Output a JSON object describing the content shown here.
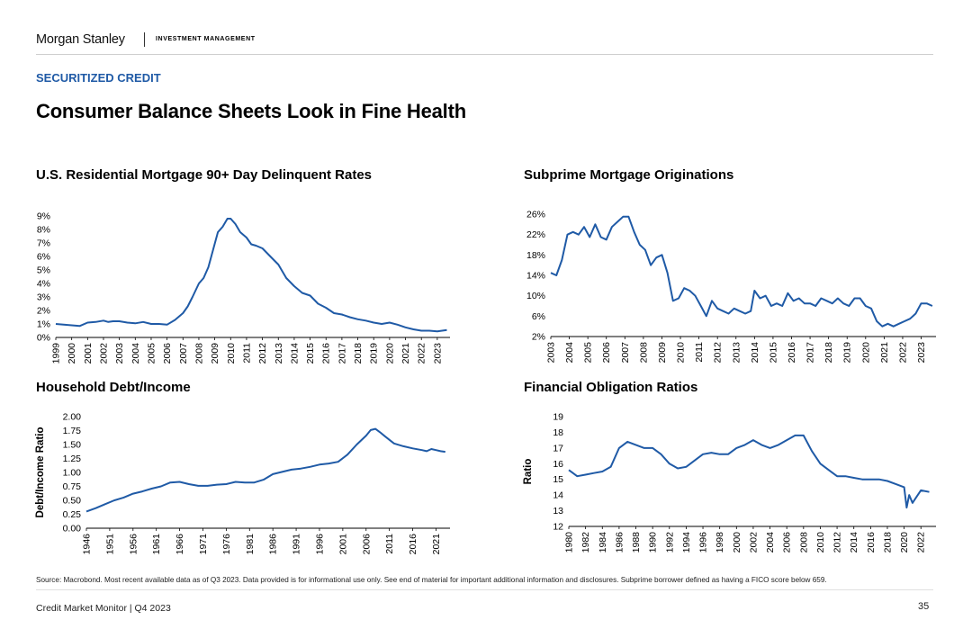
{
  "header": {
    "brand": "Morgan Stanley",
    "division": "INVESTMENT MANAGEMENT"
  },
  "section_label": "SECURITIZED CREDIT",
  "page_title": "Consumer Balance Sheets Look in Fine Health",
  "colors": {
    "line": "#1f5aa6",
    "section": "#1f5aa6",
    "axis": "#000000"
  },
  "chart_data": [
    {
      "id": "delinquency",
      "type": "line",
      "title": "U.S. Residential Mortgage 90+ Day Delinquent Rates",
      "ylabel": "",
      "ylim": [
        0,
        9
      ],
      "yticks": [
        0,
        1,
        2,
        3,
        4,
        5,
        6,
        7,
        8,
        9
      ],
      "ytick_labels": [
        "0%",
        "1%",
        "2%",
        "3%",
        "4%",
        "5%",
        "6%",
        "7%",
        "8%",
        "9%"
      ],
      "xlim": [
        1999,
        2023.8
      ],
      "xticks": [
        1999,
        2000,
        2001,
        2002,
        2003,
        2004,
        2005,
        2006,
        2007,
        2008,
        2009,
        2010,
        2011,
        2012,
        2013,
        2014,
        2015,
        2016,
        2017,
        2018,
        2019,
        2020,
        2021,
        2022,
        2023
      ],
      "xtick_labels": [
        "1999",
        "2000",
        "2001",
        "2002",
        "2003",
        "2004",
        "2005",
        "2006",
        "2007",
        "2008",
        "2009",
        "2010",
        "2011",
        "2012",
        "2013",
        "2014",
        "2015",
        "2016",
        "2017",
        "2018",
        "2019",
        "2020",
        "2021",
        "2022",
        "2023"
      ],
      "series": [
        {
          "x": [
            1999,
            1999.5,
            2000,
            2000.5,
            2001,
            2001.5,
            2002,
            2002.3,
            2002.6,
            2003,
            2003.5,
            2004,
            2004.5,
            2005,
            2005.5,
            2006,
            2006.5,
            2007,
            2007.3,
            2007.6,
            2008,
            2008.3,
            2008.6,
            2008.9,
            2009.2,
            2009.5,
            2009.8,
            2010.0,
            2010.3,
            2010.6,
            2011,
            2011.3,
            2011.6,
            2012,
            2012.5,
            2013,
            2013.5,
            2014,
            2014.5,
            2015,
            2015.5,
            2016,
            2016.5,
            2017,
            2017.5,
            2018,
            2018.5,
            2019,
            2019.5,
            2020,
            2020.5,
            2021,
            2021.5,
            2022,
            2022.5,
            2023,
            2023.6
          ],
          "y": [
            1.0,
            0.95,
            0.9,
            0.85,
            1.1,
            1.15,
            1.25,
            1.15,
            1.2,
            1.2,
            1.1,
            1.05,
            1.15,
            1.0,
            1.0,
            0.95,
            1.3,
            1.8,
            2.3,
            3.0,
            4.0,
            4.4,
            5.2,
            6.5,
            7.8,
            8.2,
            8.8,
            8.8,
            8.4,
            7.8,
            7.4,
            6.9,
            6.8,
            6.6,
            6.0,
            5.4,
            4.4,
            3.8,
            3.3,
            3.1,
            2.5,
            2.2,
            1.8,
            1.7,
            1.5,
            1.35,
            1.25,
            1.1,
            1.0,
            1.1,
            0.95,
            0.75,
            0.6,
            0.5,
            0.5,
            0.45,
            0.55
          ]
        }
      ]
    },
    {
      "id": "subprime",
      "type": "line",
      "title": "Subprime Mortgage Originations",
      "ylabel": "",
      "ylim": [
        2,
        26
      ],
      "yticks": [
        2,
        6,
        10,
        14,
        18,
        22,
        26
      ],
      "ytick_labels": [
        "2%",
        "6%",
        "10%",
        "14%",
        "18%",
        "22%",
        "26%"
      ],
      "xlim": [
        2003,
        2023.8
      ],
      "xticks": [
        2003,
        2004,
        2005,
        2006,
        2007,
        2008,
        2009,
        2010,
        2011,
        2012,
        2013,
        2014,
        2015,
        2016,
        2017,
        2018,
        2019,
        2020,
        2021,
        2022,
        2023
      ],
      "xtick_labels": [
        "2003",
        "2004",
        "2005",
        "2006",
        "2007",
        "2008",
        "2009",
        "2010",
        "2011",
        "2012",
        "2013",
        "2014",
        "2015",
        "2016",
        "2017",
        "2018",
        "2019",
        "2020",
        "2021",
        "2022",
        "2023"
      ],
      "series": [
        {
          "x": [
            2003,
            2003.3,
            2003.6,
            2003.9,
            2004.2,
            2004.5,
            2004.8,
            2005.1,
            2005.4,
            2005.7,
            2006.0,
            2006.3,
            2006.6,
            2006.9,
            2007.2,
            2007.5,
            2007.8,
            2008.1,
            2008.4,
            2008.7,
            2009.0,
            2009.3,
            2009.6,
            2009.9,
            2010.2,
            2010.5,
            2010.8,
            2011.1,
            2011.4,
            2011.7,
            2012.0,
            2012.3,
            2012.6,
            2012.9,
            2013.2,
            2013.5,
            2013.8,
            2014.0,
            2014.3,
            2014.6,
            2014.9,
            2015.2,
            2015.5,
            2015.8,
            2016.1,
            2016.4,
            2016.7,
            2017.0,
            2017.3,
            2017.6,
            2017.9,
            2018.2,
            2018.5,
            2018.8,
            2019.1,
            2019.4,
            2019.7,
            2020.0,
            2020.3,
            2020.6,
            2020.9,
            2021.2,
            2021.5,
            2021.8,
            2022.1,
            2022.4,
            2022.7,
            2023.0,
            2023.3,
            2023.6
          ],
          "y": [
            14.5,
            14.0,
            17.0,
            22.0,
            22.5,
            22.0,
            23.5,
            21.5,
            24.0,
            21.5,
            21.0,
            23.5,
            24.5,
            25.5,
            25.5,
            22.5,
            20.0,
            19.0,
            16.0,
            17.5,
            18.0,
            14.5,
            9.0,
            9.5,
            11.5,
            11.0,
            10.0,
            8.0,
            6.0,
            9.0,
            7.5,
            7.0,
            6.5,
            7.5,
            7.0,
            6.5,
            7.0,
            11.0,
            9.5,
            10.0,
            8.0,
            8.5,
            8.0,
            10.5,
            9.0,
            9.5,
            8.5,
            8.5,
            8.0,
            9.5,
            9.0,
            8.5,
            9.5,
            8.5,
            8.0,
            9.5,
            9.5,
            8.0,
            7.5,
            5.0,
            4.0,
            4.5,
            4.0,
            4.5,
            5.0,
            5.5,
            6.5,
            8.5,
            8.5,
            8.0
          ]
        }
      ]
    },
    {
      "id": "household",
      "type": "line",
      "title": "Household Debt/Income",
      "ylabel": "Debt/Income Ratio",
      "ylim": [
        0,
        2
      ],
      "yticks": [
        0,
        0.25,
        0.5,
        0.75,
        1,
        1.25,
        1.5,
        1.75,
        2
      ],
      "ytick_labels": [
        "0.00",
        "0.25",
        "0.50",
        "0.75",
        "1.00",
        "1.25",
        "1.50",
        "1.75",
        "2.00"
      ],
      "xlim": [
        1946,
        2024
      ],
      "xticks": [
        1946,
        1951,
        1956,
        1961,
        1966,
        1971,
        1976,
        1981,
        1986,
        1991,
        1996,
        2001,
        2006,
        2011,
        2016,
        2021
      ],
      "xtick_labels": [
        "1946",
        "1951",
        "1956",
        "1961",
        "1966",
        "1971",
        "1976",
        "1981",
        "1986",
        "1991",
        "1996",
        "2001",
        "2006",
        "2011",
        "2016",
        "2021"
      ],
      "series": [
        {
          "x": [
            1946,
            1948,
            1950,
            1952,
            1954,
            1956,
            1958,
            1960,
            1962,
            1964,
            1966,
            1968,
            1970,
            1972,
            1974,
            1976,
            1978,
            1980,
            1982,
            1984,
            1986,
            1988,
            1990,
            1992,
            1994,
            1996,
            1998,
            2000,
            2002,
            2004,
            2006,
            2007,
            2008,
            2009,
            2010,
            2012,
            2014,
            2016,
            2018,
            2019,
            2020,
            2021,
            2022,
            2023
          ],
          "y": [
            0.3,
            0.36,
            0.43,
            0.5,
            0.55,
            0.62,
            0.66,
            0.71,
            0.75,
            0.82,
            0.83,
            0.79,
            0.76,
            0.76,
            0.78,
            0.79,
            0.83,
            0.82,
            0.82,
            0.87,
            0.97,
            1.01,
            1.05,
            1.07,
            1.1,
            1.14,
            1.16,
            1.19,
            1.32,
            1.5,
            1.66,
            1.76,
            1.78,
            1.72,
            1.65,
            1.52,
            1.47,
            1.43,
            1.4,
            1.38,
            1.42,
            1.4,
            1.38,
            1.37
          ]
        }
      ]
    },
    {
      "id": "obligation",
      "type": "line",
      "title": "Financial Obligation Ratios",
      "ylabel": "Ratio",
      "ylim": [
        12,
        19
      ],
      "yticks": [
        12,
        13,
        14,
        15,
        16,
        17,
        18,
        19
      ],
      "ytick_labels": [
        "12",
        "13",
        "14",
        "15",
        "16",
        "17",
        "18",
        "19"
      ],
      "xlim": [
        1980,
        2023.8
      ],
      "xticks": [
        1980,
        1982,
        1984,
        1986,
        1988,
        1990,
        1992,
        1994,
        1996,
        1998,
        2000,
        2002,
        2004,
        2006,
        2008,
        2010,
        2012,
        2014,
        2016,
        2018,
        2020,
        2022
      ],
      "xtick_labels": [
        "1980",
        "1982",
        "1984",
        "1986",
        "1988",
        "1990",
        "1992",
        "1994",
        "1996",
        "1998",
        "2000",
        "2002",
        "2004",
        "2006",
        "2008",
        "2010",
        "2012",
        "2014",
        "2016",
        "2018",
        "2020",
        "2022"
      ],
      "series": [
        {
          "x": [
            1980,
            1981,
            1982,
            1983,
            1984,
            1985,
            1986,
            1987,
            1988,
            1989,
            1990,
            1991,
            1992,
            1993,
            1994,
            1995,
            1996,
            1997,
            1998,
            1999,
            2000,
            2001,
            2002,
            2003,
            2004,
            2005,
            2006,
            2007,
            2008,
            2009,
            2010,
            2011,
            2012,
            2013,
            2014,
            2015,
            2016,
            2017,
            2018,
            2019,
            2020,
            2020.3,
            2020.6,
            2021,
            2022,
            2023
          ],
          "y": [
            15.6,
            15.2,
            15.3,
            15.4,
            15.5,
            15.8,
            17.0,
            17.4,
            17.2,
            17.0,
            17.0,
            16.6,
            16.0,
            15.7,
            15.8,
            16.2,
            16.6,
            16.7,
            16.6,
            16.6,
            17.0,
            17.2,
            17.5,
            17.2,
            17.0,
            17.2,
            17.5,
            17.8,
            17.8,
            16.8,
            16.0,
            15.6,
            15.2,
            15.2,
            15.1,
            15.0,
            15.0,
            15.0,
            14.9,
            14.7,
            14.5,
            13.2,
            14.0,
            13.5,
            14.3,
            14.2
          ]
        }
      ]
    }
  ],
  "source_note": "Source: Macrobond. Most recent available data as of Q3 2023. Data provided is for informational use only. See end of material for important additional information and disclosures. Subprime borrower defined as having a FICO score below 659.",
  "footer": {
    "left": "Credit Market Monitor | Q4 2023",
    "page": "35"
  }
}
